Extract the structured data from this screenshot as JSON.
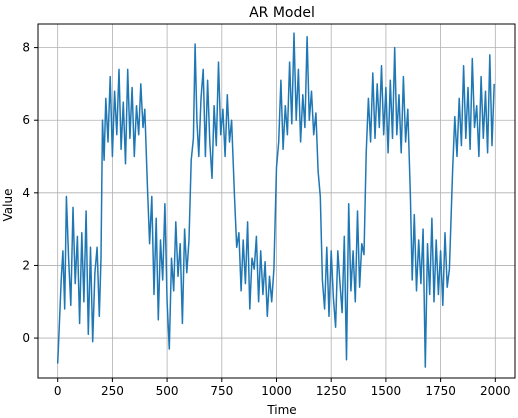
{
  "chart_data": {
    "type": "line",
    "title": "AR Model",
    "xlabel": "Time",
    "ylabel": "Value",
    "xlim": [
      -90,
      2090
    ],
    "ylim": [
      -1.1,
      8.65
    ],
    "xticks": [
      0,
      250,
      500,
      750,
      1000,
      1250,
      1500,
      1750,
      2000
    ],
    "yticks": [
      0,
      2,
      4,
      6,
      8
    ],
    "grid": true,
    "line_color": "#1f77b4",
    "series": [
      {
        "points": [
          [
            0,
            -0.7
          ],
          [
            8,
            0.4
          ],
          [
            16,
            1.6
          ],
          [
            24,
            2.4
          ],
          [
            32,
            0.8
          ],
          [
            40,
            3.9
          ],
          [
            50,
            2.2
          ],
          [
            60,
            0.9
          ],
          [
            70,
            3.6
          ],
          [
            80,
            1.5
          ],
          [
            90,
            2.8
          ],
          [
            100,
            0.4
          ],
          [
            110,
            2.9
          ],
          [
            120,
            1.0
          ],
          [
            130,
            3.5
          ],
          [
            140,
            0.1
          ],
          [
            150,
            2.5
          ],
          [
            160,
            -0.1
          ],
          [
            170,
            1.8
          ],
          [
            180,
            2.5
          ],
          [
            190,
            0.6
          ],
          [
            198,
            2.2
          ],
          [
            205,
            6.0
          ],
          [
            212,
            4.9
          ],
          [
            220,
            6.6
          ],
          [
            230,
            5.4
          ],
          [
            240,
            7.2
          ],
          [
            250,
            5.0
          ],
          [
            260,
            6.8
          ],
          [
            270,
            5.6
          ],
          [
            280,
            7.4
          ],
          [
            290,
            5.2
          ],
          [
            300,
            6.5
          ],
          [
            310,
            4.8
          ],
          [
            320,
            7.4
          ],
          [
            330,
            5.5
          ],
          [
            340,
            6.9
          ],
          [
            350,
            5.0
          ],
          [
            360,
            6.4
          ],
          [
            370,
            5.6
          ],
          [
            380,
            7.0
          ],
          [
            390,
            5.8
          ],
          [
            398,
            6.3
          ],
          [
            410,
            4.2
          ],
          [
            420,
            2.6
          ],
          [
            430,
            3.9
          ],
          [
            440,
            1.2
          ],
          [
            450,
            3.3
          ],
          [
            460,
            0.5
          ],
          [
            470,
            2.7
          ],
          [
            480,
            1.6
          ],
          [
            490,
            3.7
          ],
          [
            500,
            1.0
          ],
          [
            510,
            -0.3
          ],
          [
            520,
            2.2
          ],
          [
            530,
            1.3
          ],
          [
            540,
            3.2
          ],
          [
            550,
            1.7
          ],
          [
            560,
            2.6
          ],
          [
            570,
            0.4
          ],
          [
            580,
            3.0
          ],
          [
            590,
            1.8
          ],
          [
            600,
            2.7
          ],
          [
            610,
            4.9
          ],
          [
            620,
            5.5
          ],
          [
            628,
            8.1
          ],
          [
            636,
            6.0
          ],
          [
            645,
            5.0
          ],
          [
            655,
            6.6
          ],
          [
            665,
            7.4
          ],
          [
            675,
            5.0
          ],
          [
            685,
            7.1
          ],
          [
            695,
            5.4
          ],
          [
            705,
            4.4
          ],
          [
            715,
            6.4
          ],
          [
            725,
            5.3
          ],
          [
            735,
            7.6
          ],
          [
            745,
            5.6
          ],
          [
            755,
            6.3
          ],
          [
            765,
            5.0
          ],
          [
            775,
            6.7
          ],
          [
            785,
            5.4
          ],
          [
            795,
            6.0
          ],
          [
            808,
            3.9
          ],
          [
            818,
            2.5
          ],
          [
            828,
            2.9
          ],
          [
            838,
            1.3
          ],
          [
            848,
            2.7
          ],
          [
            858,
            1.5
          ],
          [
            868,
            3.2
          ],
          [
            878,
            0.8
          ],
          [
            888,
            2.2
          ],
          [
            898,
            1.9
          ],
          [
            908,
            2.8
          ],
          [
            918,
            1.0
          ],
          [
            928,
            2.4
          ],
          [
            938,
            1.2
          ],
          [
            948,
            2.1
          ],
          [
            958,
            0.6
          ],
          [
            968,
            1.7
          ],
          [
            978,
            1.0
          ],
          [
            988,
            1.9
          ],
          [
            1000,
            4.7
          ],
          [
            1010,
            5.4
          ],
          [
            1020,
            7.1
          ],
          [
            1030,
            5.2
          ],
          [
            1040,
            6.4
          ],
          [
            1050,
            5.6
          ],
          [
            1060,
            7.6
          ],
          [
            1070,
            5.9
          ],
          [
            1080,
            8.4
          ],
          [
            1090,
            6.0
          ],
          [
            1100,
            7.4
          ],
          [
            1110,
            5.4
          ],
          [
            1120,
            6.7
          ],
          [
            1130,
            5.8
          ],
          [
            1140,
            8.3
          ],
          [
            1150,
            6.0
          ],
          [
            1160,
            6.8
          ],
          [
            1170,
            5.6
          ],
          [
            1180,
            6.2
          ],
          [
            1190,
            4.6
          ],
          [
            1200,
            3.9
          ],
          [
            1210,
            1.6
          ],
          [
            1220,
            0.8
          ],
          [
            1230,
            2.5
          ],
          [
            1240,
            0.6
          ],
          [
            1250,
            2.4
          ],
          [
            1260,
            1.1
          ],
          [
            1270,
            0.3
          ],
          [
            1280,
            2.4
          ],
          [
            1290,
            1.5
          ],
          [
            1300,
            0.7
          ],
          [
            1310,
            2.8
          ],
          [
            1320,
            -0.6
          ],
          [
            1330,
            3.7
          ],
          [
            1340,
            1.3
          ],
          [
            1350,
            2.4
          ],
          [
            1360,
            1.0
          ],
          [
            1370,
            3.5
          ],
          [
            1380,
            1.4
          ],
          [
            1390,
            2.6
          ],
          [
            1400,
            2.3
          ],
          [
            1410,
            5.1
          ],
          [
            1420,
            6.6
          ],
          [
            1430,
            5.4
          ],
          [
            1440,
            7.3
          ],
          [
            1450,
            5.5
          ],
          [
            1460,
            7.0
          ],
          [
            1470,
            5.8
          ],
          [
            1480,
            7.5
          ],
          [
            1490,
            5.6
          ],
          [
            1500,
            6.9
          ],
          [
            1510,
            5.1
          ],
          [
            1520,
            7.1
          ],
          [
            1530,
            5.5
          ],
          [
            1540,
            8.0
          ],
          [
            1550,
            5.6
          ],
          [
            1560,
            6.7
          ],
          [
            1570,
            5.1
          ],
          [
            1580,
            7.2
          ],
          [
            1590,
            5.4
          ],
          [
            1600,
            6.3
          ],
          [
            1612,
            3.9
          ],
          [
            1620,
            1.6
          ],
          [
            1630,
            3.4
          ],
          [
            1640,
            1.3
          ],
          [
            1650,
            2.7
          ],
          [
            1660,
            1.5
          ],
          [
            1670,
            3.0
          ],
          [
            1680,
            -0.8
          ],
          [
            1690,
            2.6
          ],
          [
            1700,
            1.2
          ],
          [
            1710,
            3.3
          ],
          [
            1720,
            1.0
          ],
          [
            1730,
            2.7
          ],
          [
            1740,
            1.2
          ],
          [
            1750,
            2.4
          ],
          [
            1760,
            0.9
          ],
          [
            1770,
            2.9
          ],
          [
            1780,
            1.4
          ],
          [
            1790,
            1.9
          ],
          [
            1805,
            4.6
          ],
          [
            1815,
            6.1
          ],
          [
            1825,
            5.0
          ],
          [
            1835,
            6.6
          ],
          [
            1845,
            5.3
          ],
          [
            1855,
            7.5
          ],
          [
            1865,
            5.5
          ],
          [
            1875,
            6.9
          ],
          [
            1885,
            5.2
          ],
          [
            1895,
            7.7
          ],
          [
            1905,
            5.8
          ],
          [
            1915,
            6.4
          ],
          [
            1925,
            5.0
          ],
          [
            1935,
            7.2
          ],
          [
            1945,
            5.5
          ],
          [
            1955,
            6.8
          ],
          [
            1965,
            5.1
          ],
          [
            1975,
            7.8
          ],
          [
            1985,
            5.3
          ],
          [
            1995,
            7.0
          ]
        ]
      }
    ]
  }
}
